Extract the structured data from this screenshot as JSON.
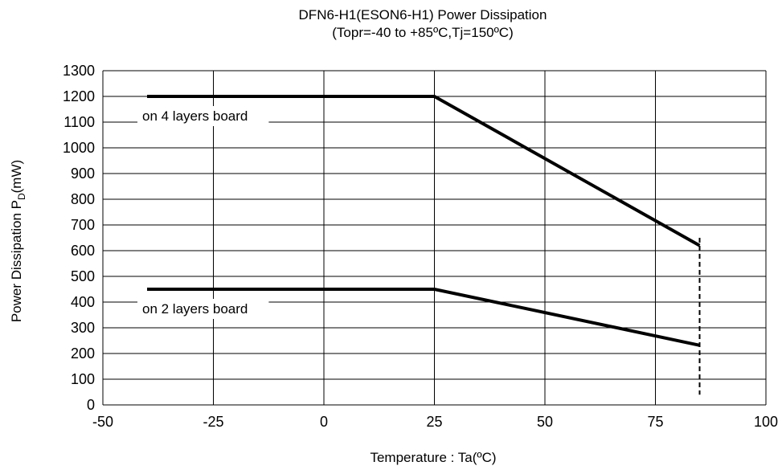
{
  "chart_data": {
    "type": "line",
    "title": "DFN6-H1(ESON6-H1) Power Dissipation",
    "subtitle": "(Topr=-40 to +85ºC,Tj=150ºC)",
    "xlabel": "Temperature : Ta(ºC)",
    "ylabel": {
      "main": "Power Dissipation P",
      "subscript": "D",
      "suffix": "(mW)"
    },
    "xlim": [
      -50,
      100
    ],
    "ylim": [
      0,
      1300
    ],
    "x_ticks": [
      -50,
      -25,
      0,
      25,
      50,
      75,
      100
    ],
    "y_ticks": [
      0,
      100,
      200,
      300,
      400,
      500,
      600,
      700,
      800,
      900,
      1000,
      1100,
      1200,
      1300
    ],
    "grid": true,
    "series": [
      {
        "name": "on 4 layers board",
        "x": [
          -40,
          25,
          85
        ],
        "y": [
          1200,
          1200,
          620
        ]
      },
      {
        "name": "on 2 layers board",
        "x": [
          -40,
          25,
          85
        ],
        "y": [
          450,
          450,
          232
        ]
      }
    ],
    "reference_line": {
      "x": 85,
      "y_range": [
        40,
        650
      ],
      "style": "dashed"
    },
    "colors": {
      "line": "#000000",
      "grid": "#000000",
      "background": "#ffffff"
    }
  }
}
